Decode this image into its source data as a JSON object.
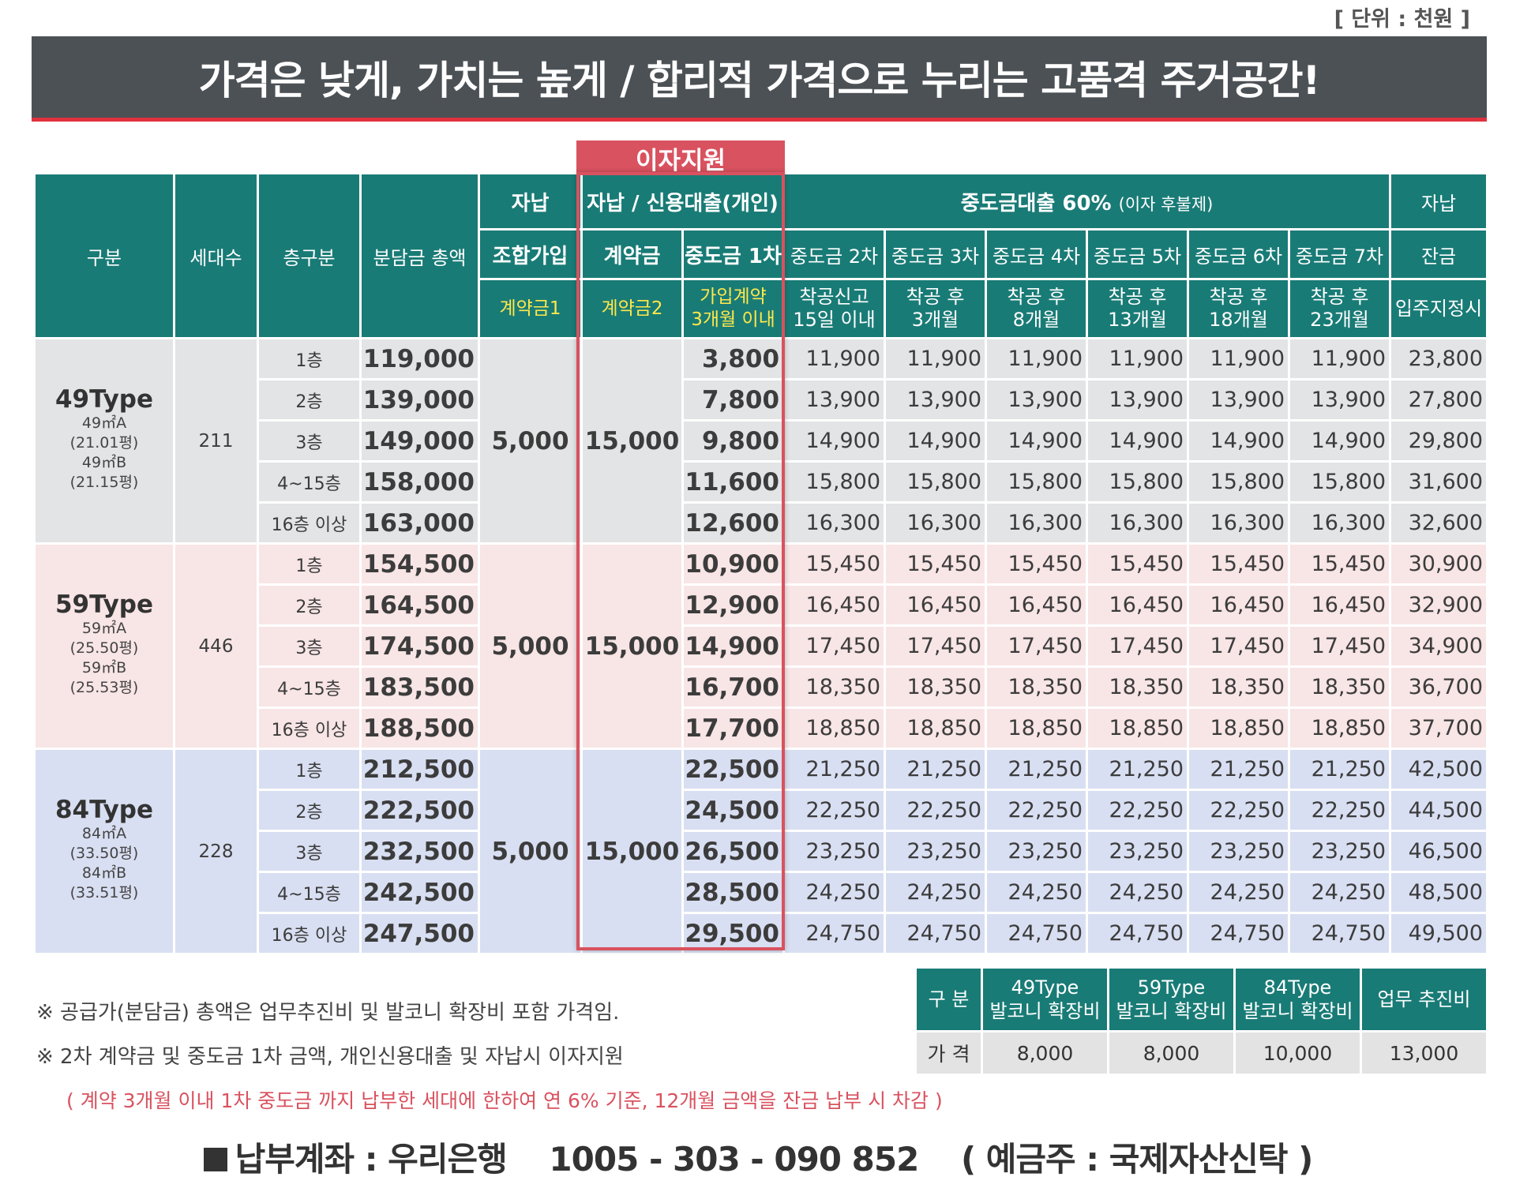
{
  "unit": "[ 단위 : 천원 ]",
  "title": "가격은 낮게, 가치는 높게 / 합리적 가격으로 누리는 고품격 주거공간!",
  "interest_label": "이자지원",
  "header": {
    "gubun": "구분",
    "units": "세대수",
    "floor": "층구분",
    "total": "분담금 총액",
    "self1": "자납",
    "self_loan": "자납 / 신용대출(개인)",
    "loan_group": "중도금대출 60%",
    "loan_note": "(이자 후불제)",
    "self2": "자납",
    "join": "조합가입",
    "contract": "계약금",
    "mid1": "중도금 1차",
    "mid2": "중도금 2차",
    "mid3": "중도금 3차",
    "mid4": "중도금 4차",
    "mid5": "중도금 5차",
    "mid6": "중도금 6차",
    "mid7": "중도금 7차",
    "balance": "잔금",
    "c1": "계약금1",
    "c2": "계약금2",
    "t1a": "가입계약",
    "t1b": "3개월 이내",
    "t2a": "착공신고",
    "t2b": "15일 이내",
    "t3a": "착공 후",
    "t3b": "3개월",
    "t4a": "착공 후",
    "t4b": "8개월",
    "t5a": "착공 후",
    "t5b": "13개월",
    "t6a": "착공 후",
    "t6b": "18개월",
    "t7a": "착공 후",
    "t7b": "23개월",
    "t8": "입주지정시"
  },
  "types": [
    {
      "name": "49Type",
      "d1": "49㎡A",
      "d2": "(21.01평)",
      "d3": "49㎡B",
      "d4": "(21.15평)",
      "units": "211",
      "join": "5,000",
      "contract": "15,000",
      "rows": [
        {
          "floor": "1층",
          "total": "119,000",
          "first": "3,800",
          "inst": "11,900",
          "bal": "23,800"
        },
        {
          "floor": "2층",
          "total": "139,000",
          "first": "7,800",
          "inst": "13,900",
          "bal": "27,800"
        },
        {
          "floor": "3층",
          "total": "149,000",
          "first": "9,800",
          "inst": "14,900",
          "bal": "29,800"
        },
        {
          "floor": "4~15층",
          "total": "158,000",
          "first": "11,600",
          "inst": "15,800",
          "bal": "31,600"
        },
        {
          "floor": "16층 이상",
          "total": "163,000",
          "first": "12,600",
          "inst": "16,300",
          "bal": "32,600"
        }
      ]
    },
    {
      "name": "59Type",
      "d1": "59㎡A",
      "d2": "(25.50평)",
      "d3": "59㎡B",
      "d4": "(25.53평)",
      "units": "446",
      "join": "5,000",
      "contract": "15,000",
      "rows": [
        {
          "floor": "1층",
          "total": "154,500",
          "first": "10,900",
          "inst": "15,450",
          "bal": "30,900"
        },
        {
          "floor": "2층",
          "total": "164,500",
          "first": "12,900",
          "inst": "16,450",
          "bal": "32,900"
        },
        {
          "floor": "3층",
          "total": "174,500",
          "first": "14,900",
          "inst": "17,450",
          "bal": "34,900"
        },
        {
          "floor": "4~15층",
          "total": "183,500",
          "first": "16,700",
          "inst": "18,350",
          "bal": "36,700"
        },
        {
          "floor": "16층 이상",
          "total": "188,500",
          "first": "17,700",
          "inst": "18,850",
          "bal": "37,700"
        }
      ]
    },
    {
      "name": "84Type",
      "d1": "84㎡A",
      "d2": "(33.50평)",
      "d3": "84㎡B",
      "d4": "(33.51평)",
      "units": "228",
      "join": "5,000",
      "contract": "15,000",
      "rows": [
        {
          "floor": "1층",
          "total": "212,500",
          "first": "22,500",
          "inst": "21,250",
          "bal": "42,500"
        },
        {
          "floor": "2층",
          "total": "222,500",
          "first": "24,500",
          "inst": "22,250",
          "bal": "44,500"
        },
        {
          "floor": "3층",
          "total": "232,500",
          "first": "26,500",
          "inst": "23,250",
          "bal": "46,500"
        },
        {
          "floor": "4~15층",
          "total": "242,500",
          "first": "28,500",
          "inst": "24,250",
          "bal": "48,500"
        },
        {
          "floor": "16층 이상",
          "total": "247,500",
          "first": "29,500",
          "inst": "24,750",
          "bal": "49,500"
        }
      ]
    }
  ],
  "notes": {
    "n1": "※  공급가(분담금) 총액은 업무추진비 및 발코니 확장비 포함 가격임.",
    "n2": "※  2차 계약금 및 중도금 1차 금액, 개인신용대출 및 자납시 이자지원",
    "n3": "( 계약 3개월 이내 1차 중도금 까지 납부한 세대에 한하여 연 6% 기준, 12개월 금액을 잔금 납부 시 차감 )"
  },
  "balcony": {
    "h0": "구 분",
    "h1a": "49Type",
    "h1b": "발코니 확장비",
    "h2a": "59Type",
    "h2b": "발코니 확장비",
    "h3a": "84Type",
    "h3b": "발코니 확장비",
    "h4": "업무 추진비",
    "v0": "가 격",
    "v1": "8,000",
    "v2": "8,000",
    "v3": "10,000",
    "v4": "13,000"
  },
  "account": {
    "label": "납부계좌 : 우리은행",
    "number": "1005 - 303 - 090 852",
    "holder": "( 예금주 : 국제자산신탁 )"
  }
}
